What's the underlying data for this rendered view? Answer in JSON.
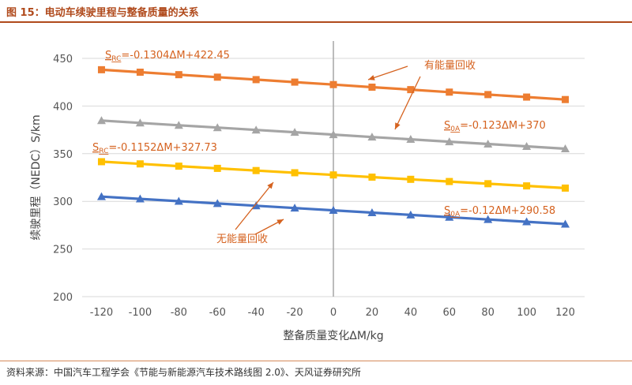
{
  "header": {
    "title": "图 15：电动车续驶里程与整备质量的关系"
  },
  "footer": {
    "source": "资料来源：中国汽车工程学会《节能与新能源汽车技术路线图 2.0》、天风证券研究所"
  },
  "colors": {
    "accent": "#b04a1c",
    "grid": "#d9d9d9",
    "axis_zero": "#a6a6a6",
    "annotation": "#d5621f"
  },
  "chart_data": {
    "type": "line",
    "title": "",
    "xlabel": "整备质量变化ΔM/kg",
    "ylabel": "续驶里程（NEDC）S/km",
    "xlim": [
      -130,
      130
    ],
    "ylim": [
      200,
      450
    ],
    "x_ticks": [
      -120,
      -100,
      -80,
      -60,
      -40,
      -20,
      0,
      20,
      40,
      60,
      80,
      100,
      120
    ],
    "y_ticks": [
      200,
      250,
      300,
      350,
      400,
      450
    ],
    "grid": true,
    "x": [
      -120,
      -100,
      -80,
      -60,
      -40,
      -20,
      0,
      20,
      40,
      60,
      80,
      100,
      120
    ],
    "series": [
      {
        "color": "#ed7d31",
        "marker": "square",
        "values": [
          438.1,
          435.5,
          432.9,
          430.3,
          427.7,
          425.1,
          422.5,
          419.8,
          417.2,
          414.6,
          412.0,
          409.4,
          406.8
        ],
        "equation": {
          "symbol": "S",
          "subscript": "RC",
          "formula": "=-0.1304ΔM+422.45"
        }
      },
      {
        "color": "#a5a5a5",
        "marker": "triangle",
        "values": [
          384.8,
          382.3,
          379.8,
          377.4,
          374.9,
          372.5,
          370.0,
          367.5,
          365.1,
          362.6,
          360.2,
          357.7,
          355.2
        ],
        "equation": {
          "symbol": "S",
          "subscript": "0A",
          "formula": "=-0.123ΔM+370"
        }
      },
      {
        "color": "#ffc000",
        "marker": "square",
        "values": [
          341.6,
          339.3,
          336.9,
          334.6,
          332.3,
          330.0,
          327.7,
          325.4,
          323.1,
          320.8,
          318.5,
          316.2,
          313.9
        ],
        "equation": {
          "symbol": "S",
          "subscript": "RC",
          "formula": "=-0.1152ΔM+327.73"
        }
      },
      {
        "color": "#4472c4",
        "marker": "triangle",
        "values": [
          305.0,
          302.6,
          300.2,
          297.8,
          295.4,
          293.0,
          290.6,
          288.2,
          285.8,
          283.4,
          281.0,
          278.6,
          276.2
        ],
        "equation": {
          "symbol": "S",
          "subscript": "0A",
          "formula": "=-0.12ΔM+290.58"
        }
      }
    ],
    "annotations": [
      {
        "text": "有能量回收"
      },
      {
        "text": "无能量回收"
      }
    ]
  }
}
